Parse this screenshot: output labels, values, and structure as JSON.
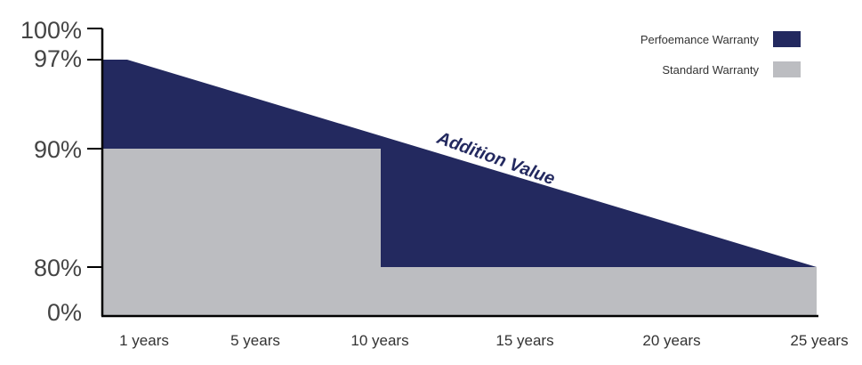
{
  "chart_data": {
    "type": "area",
    "x_ticks": [
      "1 years",
      "5 years",
      "10 years",
      "15 years",
      "20 years",
      "25 years"
    ],
    "y_ticks": [
      {
        "label": "100%",
        "value": 100
      },
      {
        "label": "97%",
        "value": 97
      },
      {
        "label": "90%",
        "value": 90
      },
      {
        "label": "80%",
        "value": 80
      },
      {
        "label": "0%",
        "value": 0
      }
    ],
    "series": [
      {
        "name": "Perfoemance Warranty",
        "color": "#23295f",
        "points": [
          [
            0,
            97
          ],
          [
            1,
            97
          ],
          [
            25,
            80
          ]
        ]
      },
      {
        "name": "Standard Warranty",
        "color": "#bcbdc1",
        "points": [
          [
            0,
            90
          ],
          [
            10,
            90
          ],
          [
            10,
            80
          ],
          [
            25,
            80
          ]
        ]
      }
    ],
    "annotation": {
      "text": "Addition Value",
      "color": "#23295f"
    },
    "legend_position": "top-right",
    "grid": false
  }
}
